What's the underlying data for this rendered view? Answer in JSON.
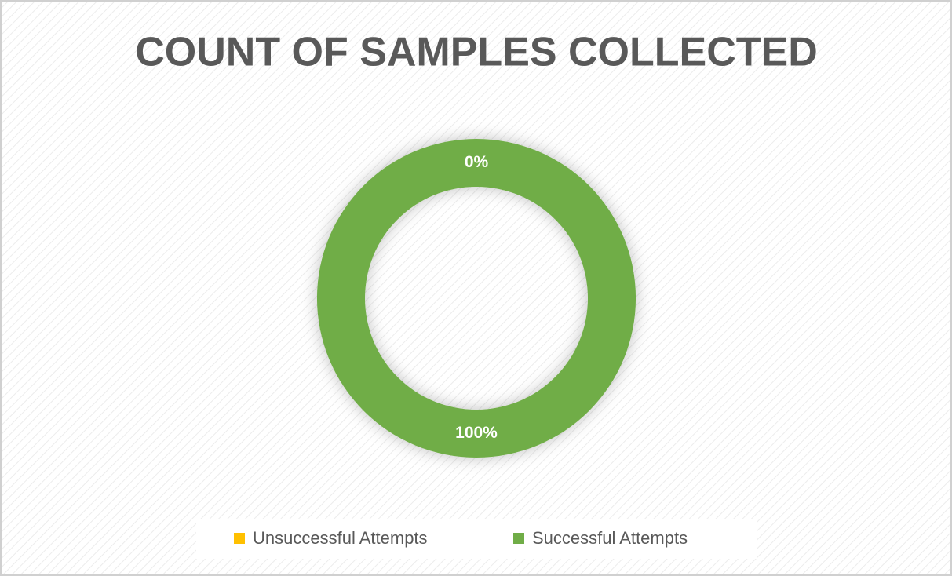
{
  "chart_data": {
    "type": "donut",
    "title": "COUNT OF SAMPLES COLLECTED",
    "categories": [
      "Unsuccessful Attempts",
      "Successful Attempts"
    ],
    "values": [
      0,
      100
    ],
    "value_labels": [
      "0%",
      "100%"
    ],
    "colors": [
      "#ffc000",
      "#70ad47"
    ],
    "legend": "bottom"
  }
}
